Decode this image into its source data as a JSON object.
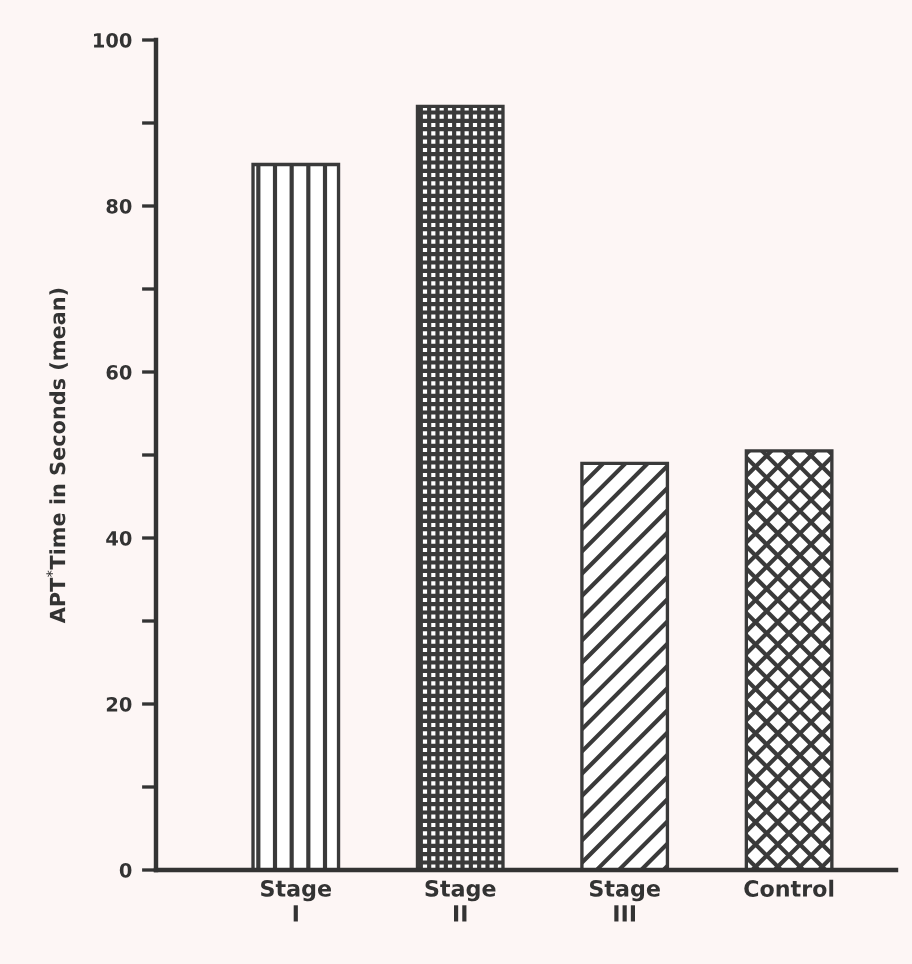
{
  "chart_data": {
    "type": "bar",
    "categories": [
      "Stage\nI",
      "Stage\nII",
      "Stage\nIII",
      "Control"
    ],
    "values": [
      85,
      92,
      49,
      50.5
    ],
    "color": "#3a3a3a",
    "ylabel": "APT$^{*}$Time in Seconds (mean)",
    "ylim": [
      0,
      100
    ],
    "yticks": [
      0,
      {
        "value": 10,
        "label": null
      },
      20,
      {
        "value": 30,
        "label": null
      },
      40,
      {
        "value": 50,
        "label": null
      },
      60,
      {
        "value": 70,
        "label": null
      },
      80,
      {
        "value": 90,
        "label": null
      },
      100
    ],
    "grid": false,
    "legend": false
  }
}
